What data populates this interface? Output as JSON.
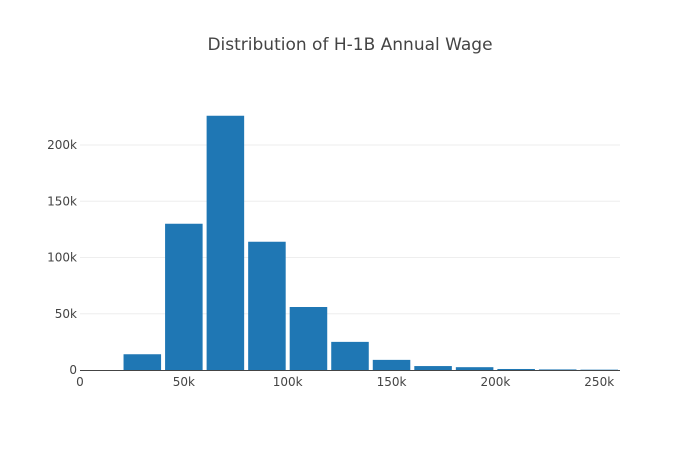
{
  "chart_data": {
    "type": "bar",
    "title": "Distribution of H-1B Annual Wage",
    "xlabel": "",
    "ylabel": "",
    "bar_color": "#1f77b4",
    "xlim": [
      0,
      260000
    ],
    "ylim": [
      0,
      240000
    ],
    "x_ticks": [
      {
        "value": 0,
        "label": "0"
      },
      {
        "value": 50000,
        "label": "50k"
      },
      {
        "value": 100000,
        "label": "100k"
      },
      {
        "value": 150000,
        "label": "150k"
      },
      {
        "value": 200000,
        "label": "200k"
      },
      {
        "value": 250000,
        "label": "250k"
      }
    ],
    "y_ticks": [
      {
        "value": 0,
        "label": "0"
      },
      {
        "value": 50000,
        "label": "50k"
      },
      {
        "value": 100000,
        "label": "100k"
      },
      {
        "value": 150000,
        "label": "150k"
      },
      {
        "value": 200000,
        "label": "200k"
      }
    ],
    "grid": true,
    "bins": [
      {
        "start": 20000,
        "end": 40000,
        "count": 14000
      },
      {
        "start": 40000,
        "end": 60000,
        "count": 130000
      },
      {
        "start": 60000,
        "end": 80000,
        "count": 226000
      },
      {
        "start": 80000,
        "end": 100000,
        "count": 114000
      },
      {
        "start": 100000,
        "end": 120000,
        "count": 56000
      },
      {
        "start": 120000,
        "end": 140000,
        "count": 25000
      },
      {
        "start": 140000,
        "end": 160000,
        "count": 9000
      },
      {
        "start": 160000,
        "end": 180000,
        "count": 3500
      },
      {
        "start": 180000,
        "end": 200000,
        "count": 2500
      },
      {
        "start": 200000,
        "end": 220000,
        "count": 900
      },
      {
        "start": 220000,
        "end": 240000,
        "count": 500
      },
      {
        "start": 240000,
        "end": 260000,
        "count": 300
      }
    ]
  }
}
